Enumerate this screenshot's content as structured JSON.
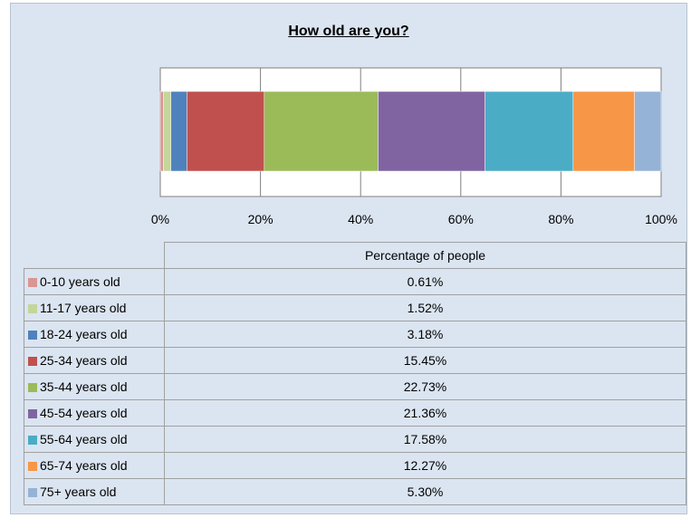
{
  "chart_data": {
    "type": "bar",
    "orientation": "horizontal-stacked-100",
    "title": "How old are you?",
    "xlim": [
      0,
      100
    ],
    "x_ticks": [
      "0%",
      "20%",
      "40%",
      "60%",
      "80%",
      "100%"
    ],
    "grid": true,
    "legend": "table-below",
    "table_header": "Percentage of people",
    "series": [
      {
        "name": "0-10 years old",
        "value": 0.61,
        "label": "0.61%",
        "color": "#d99694"
      },
      {
        "name": "11-17 years old",
        "value": 1.52,
        "label": "1.52%",
        "color": "#c3d69b"
      },
      {
        "name": "18-24 years old",
        "value": 3.18,
        "label": "3.18%",
        "color": "#4f81bd"
      },
      {
        "name": "25-34 years old",
        "value": 15.45,
        "label": "15.45%",
        "color": "#c0504d"
      },
      {
        "name": "35-44 years old",
        "value": 22.73,
        "label": "22.73%",
        "color": "#9bbb59"
      },
      {
        "name": "45-54 years old",
        "value": 21.36,
        "label": "21.36%",
        "color": "#8064a2"
      },
      {
        "name": "55-64 years old",
        "value": 17.58,
        "label": "17.58%",
        "color": "#4bacc6"
      },
      {
        "name": "65-74 years old",
        "value": 12.27,
        "label": "12.27%",
        "color": "#f79646"
      },
      {
        "name": "75+ years old",
        "value": 5.3,
        "label": "5.30%",
        "color": "#95b3d7"
      }
    ]
  }
}
